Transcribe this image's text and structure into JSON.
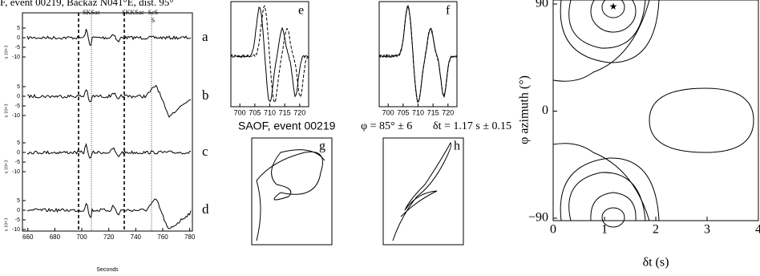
{
  "left_panel": {
    "title": "F, event 00219, Backaz N041°E, dist. 95°",
    "phases": [
      "SKSac",
      "SKKSac",
      "ScS",
      "S"
    ],
    "traces": [
      "a",
      "b",
      "c",
      "d"
    ],
    "yticks": [
      5,
      0,
      -5,
      -10
    ],
    "y_unit": "x 10+3",
    "xlim": [
      656,
      782
    ],
    "xticks": [
      660,
      680,
      700,
      720,
      740,
      760,
      780
    ],
    "xlabel": "Seconds"
  },
  "panel_e": {
    "label": "e",
    "xlim": [
      697,
      723
    ],
    "xticks": [
      700,
      705,
      710,
      715,
      720
    ]
  },
  "panel_f": {
    "label": "f",
    "xlim": [
      697,
      723
    ],
    "xticks": [
      700,
      705,
      710,
      715,
      720
    ]
  },
  "caption": {
    "station": "SAOF, event 00219",
    "phi": "φ = 85° ± 6",
    "dt": "δt = 1.17 s ± 0.15"
  },
  "panel_g": {
    "label": "g"
  },
  "panel_h": {
    "label": "h"
  },
  "contour": {
    "ylabel": "φ azimuth (°)",
    "xlabel": "δt (s)",
    "xlim": [
      0,
      4
    ],
    "ylim": [
      -90,
      90
    ],
    "xticks": [
      0,
      1,
      2,
      3,
      4
    ],
    "yticks": [
      {
        "value": -90,
        "label": "−90"
      },
      0,
      90
    ]
  }
}
